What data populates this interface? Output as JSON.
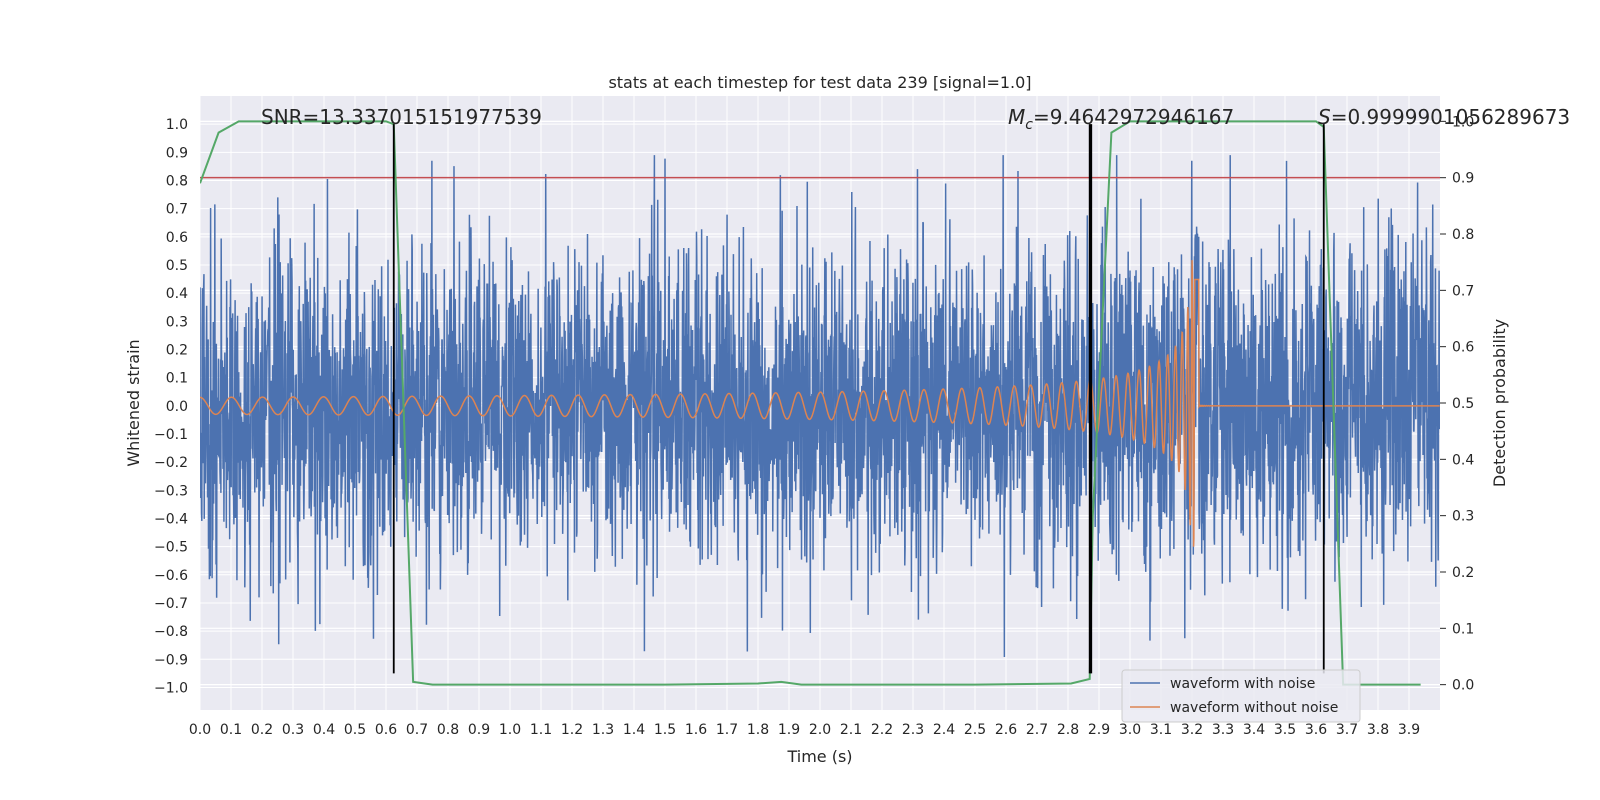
{
  "chart_data": {
    "type": "line",
    "title": "stats at each timestep for test data 239 [signal=1.0]",
    "xlabel": "Time (s)",
    "ylabel_left": "Whitened strain",
    "ylabel_right": "Detection probability",
    "xlim": [
      0.0,
      4.0
    ],
    "ylim_left": [
      -1.08,
      1.1
    ],
    "ylim_right": [
      -0.045,
      1.045
    ],
    "x_ticks": [
      "0.0",
      "0.1",
      "0.2",
      "0.3",
      "0.4",
      "0.5",
      "0.6",
      "0.7",
      "0.8",
      "0.9",
      "1.0",
      "1.1",
      "1.2",
      "1.3",
      "1.4",
      "1.5",
      "1.6",
      "1.7",
      "1.8",
      "1.9",
      "2.0",
      "2.1",
      "2.2",
      "2.3",
      "2.4",
      "2.5",
      "2.6",
      "2.7",
      "2.8",
      "2.9",
      "3.0",
      "3.1",
      "3.2",
      "3.3",
      "3.4",
      "3.5",
      "3.6",
      "3.7",
      "3.8",
      "3.9"
    ],
    "y_ticks_left": [
      "1.0",
      "0.9",
      "0.8",
      "0.7",
      "0.6",
      "0.5",
      "0.4",
      "0.3",
      "0.2",
      "0.1",
      "0.0",
      "−0.1",
      "−0.2",
      "−0.3",
      "−0.4",
      "−0.5",
      "−0.6",
      "−0.7",
      "−0.8",
      "−0.9",
      "−1.0"
    ],
    "y_ticks_right": [
      "1.0",
      "0.9",
      "0.8",
      "0.7",
      "0.6",
      "0.5",
      "0.4",
      "0.3",
      "0.2",
      "0.1",
      "0.0"
    ],
    "annotations": {
      "snr": "SNR=13.337015151977539",
      "mc_symbol": "M",
      "mc_sub": "c",
      "mc_value": "=9.4642972946167",
      "s_symbol": "S",
      "s_value": "=0.9999901056289673"
    },
    "threshold": {
      "axis": "right",
      "value": 0.9,
      "color": "#c44e52"
    },
    "vertical_lines": [
      0.625,
      2.87,
      2.875,
      3.625
    ],
    "vertical_line_range_left": [
      -0.95,
      1.0
    ],
    "series": [
      {
        "name": "waveform with noise",
        "color": "#4c72b0",
        "axis": "left",
        "kind": "noise",
        "amplitude_std": 0.28,
        "peak_range": [
          -0.95,
          0.89
        ]
      },
      {
        "name": "waveform without noise",
        "color": "#dd8452",
        "axis": "left",
        "kind": "chirp",
        "start_amplitude": 0.03,
        "peak_value": 0.52,
        "trough_value": -0.44,
        "merger_time": 3.21
      },
      {
        "name": "detection probability",
        "color": "#55a868",
        "axis": "right",
        "x": [
          0.0,
          0.06,
          0.125,
          0.2,
          0.3,
          0.4,
          0.5,
          0.6,
          0.625,
          0.6875,
          0.75,
          0.8,
          1.0,
          1.5,
          1.8,
          1.875,
          1.94,
          2.0,
          2.5,
          2.81,
          2.87,
          2.88,
          2.94,
          3.0,
          3.2,
          3.5,
          3.6,
          3.625,
          3.6875,
          3.75,
          3.9375
        ],
        "y": [
          0.89,
          0.98,
          1.0,
          1.0,
          1.0,
          1.0,
          1.0,
          1.0,
          0.995,
          0.005,
          0.0,
          0.0,
          0.0,
          0.0,
          0.002,
          0.005,
          0.0,
          0.0,
          0.0,
          0.002,
          0.01,
          0.3,
          0.98,
          1.0,
          1.0,
          1.0,
          1.0,
          0.99,
          0.0,
          0.0,
          0.0
        ]
      }
    ],
    "legend": {
      "position": "lower-right",
      "entries": [
        "waveform with noise",
        "waveform without noise"
      ]
    }
  }
}
